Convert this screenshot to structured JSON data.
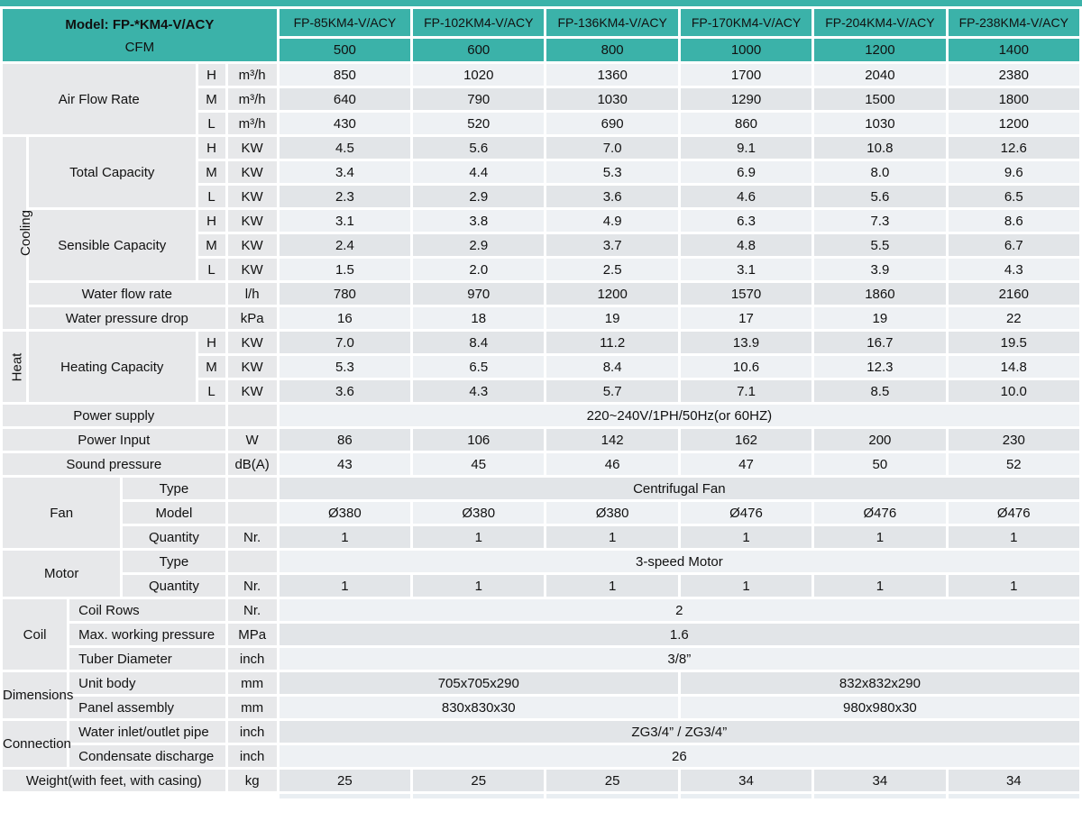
{
  "title": "FP-*KM4-V/ACY fan coil unit specification table",
  "colors": {
    "teal_header": "#3bb2a9",
    "row_light": "#eef1f4",
    "row_dark": "#e2e5e8",
    "label_gray": "#e7e8ea",
    "background": "#ffffff",
    "text": "#111111"
  },
  "header": {
    "model_label": "Model: FP-*KM4-V/ACY",
    "cfm_label": "CFM"
  },
  "table": {
    "rows": [
      {
        "cells": [
          {
            "k": "corner",
            "c": 6,
            "r": 2,
            "t": ""
          },
          {
            "k": "th-model",
            "t": "FP-85KM4-V/ACY"
          },
          {
            "k": "th-model",
            "t": "FP-102KM4-V/ACY"
          },
          {
            "k": "th-model",
            "t": "FP-136KM4-V/ACY"
          },
          {
            "k": "th-model",
            "t": "FP-170KM4-V/ACY"
          },
          {
            "k": "th-model",
            "t": "FP-204KM4-V/ACY"
          },
          {
            "k": "th-model",
            "t": "FP-238KM4-V/ACY"
          }
        ]
      },
      {
        "cells": [
          {
            "k": "th-cfm",
            "t": "500"
          },
          {
            "k": "th-cfm",
            "t": "600"
          },
          {
            "k": "th-cfm",
            "t": "800"
          },
          {
            "k": "th-cfm",
            "t": "1000"
          },
          {
            "k": "th-cfm",
            "t": "1200"
          },
          {
            "k": "th-cfm",
            "t": "1400"
          }
        ]
      },
      {
        "cells": [
          {
            "k": "label",
            "c": 4,
            "r": 3,
            "t": "Air Flow Rate"
          },
          {
            "k": "hml",
            "t": "H"
          },
          {
            "k": "unit",
            "t": "m³/h"
          },
          {
            "t": "850"
          },
          {
            "t": "1020"
          },
          {
            "t": "1360"
          },
          {
            "t": "1700"
          },
          {
            "t": "2040"
          },
          {
            "t": "2380"
          }
        ]
      },
      {
        "cells": [
          {
            "k": "hml",
            "t": "M"
          },
          {
            "k": "unit",
            "t": "m³/h"
          },
          {
            "t": "640"
          },
          {
            "t": "790"
          },
          {
            "t": "1030"
          },
          {
            "t": "1290"
          },
          {
            "t": "1500"
          },
          {
            "t": "1800"
          }
        ]
      },
      {
        "cells": [
          {
            "k": "hml",
            "t": "L"
          },
          {
            "k": "unit",
            "t": "m³/h"
          },
          {
            "t": "430"
          },
          {
            "t": "520"
          },
          {
            "t": "690"
          },
          {
            "t": "860"
          },
          {
            "t": "1030"
          },
          {
            "t": "1200"
          }
        ]
      },
      {
        "cells": [
          {
            "k": "vlabel",
            "r": 8,
            "t": "Cooling"
          },
          {
            "k": "label",
            "c": 3,
            "r": 3,
            "t": "Total Capacity"
          },
          {
            "k": "hml",
            "t": "H"
          },
          {
            "k": "unit",
            "t": "KW"
          },
          {
            "t": "4.5"
          },
          {
            "t": "5.6"
          },
          {
            "t": "7.0"
          },
          {
            "t": "9.1"
          },
          {
            "t": "10.8"
          },
          {
            "t": "12.6"
          }
        ]
      },
      {
        "cells": [
          {
            "k": "hml",
            "t": "M"
          },
          {
            "k": "unit",
            "t": "KW"
          },
          {
            "t": "3.4"
          },
          {
            "t": "4.4"
          },
          {
            "t": "5.3"
          },
          {
            "t": "6.9"
          },
          {
            "t": "8.0"
          },
          {
            "t": "9.6"
          }
        ]
      },
      {
        "cells": [
          {
            "k": "hml",
            "t": "L"
          },
          {
            "k": "unit",
            "t": "KW"
          },
          {
            "t": "2.3"
          },
          {
            "t": "2.9"
          },
          {
            "t": "3.6"
          },
          {
            "t": "4.6"
          },
          {
            "t": "5.6"
          },
          {
            "t": "6.5"
          }
        ]
      },
      {
        "cells": [
          {
            "k": "label",
            "c": 3,
            "r": 3,
            "t": "Sensible Capacity"
          },
          {
            "k": "hml",
            "t": "H"
          },
          {
            "k": "unit",
            "t": "KW"
          },
          {
            "t": "3.1"
          },
          {
            "t": "3.8"
          },
          {
            "t": "4.9"
          },
          {
            "t": "6.3"
          },
          {
            "t": "7.3"
          },
          {
            "t": "8.6"
          }
        ]
      },
      {
        "cells": [
          {
            "k": "hml",
            "t": "M"
          },
          {
            "k": "unit",
            "t": "KW"
          },
          {
            "t": "2.4"
          },
          {
            "t": "2.9"
          },
          {
            "t": "3.7"
          },
          {
            "t": "4.8"
          },
          {
            "t": "5.5"
          },
          {
            "t": "6.7"
          }
        ]
      },
      {
        "cells": [
          {
            "k": "hml",
            "t": "L"
          },
          {
            "k": "unit",
            "t": "KW"
          },
          {
            "t": "1.5"
          },
          {
            "t": "2.0"
          },
          {
            "t": "2.5"
          },
          {
            "t": "3.1"
          },
          {
            "t": "3.9"
          },
          {
            "t": "4.3"
          }
        ]
      },
      {
        "cells": [
          {
            "k": "label",
            "c": 4,
            "t": "Water flow rate"
          },
          {
            "k": "unit",
            "t": "l/h"
          },
          {
            "t": "780"
          },
          {
            "t": "970"
          },
          {
            "t": "1200"
          },
          {
            "t": "1570"
          },
          {
            "t": "1860"
          },
          {
            "t": "2160"
          }
        ]
      },
      {
        "cells": [
          {
            "k": "label",
            "c": 4,
            "t": "Water pressure drop"
          },
          {
            "k": "unit",
            "t": "kPa"
          },
          {
            "t": "16"
          },
          {
            "t": "18"
          },
          {
            "t": "19"
          },
          {
            "t": "17"
          },
          {
            "t": "19"
          },
          {
            "t": "22"
          }
        ]
      },
      {
        "cells": [
          {
            "k": "vlabel",
            "r": 3,
            "t": "Heat"
          },
          {
            "k": "label",
            "c": 3,
            "r": 3,
            "t": "Heating Capacity"
          },
          {
            "k": "hml",
            "t": "H"
          },
          {
            "k": "unit",
            "t": "KW"
          },
          {
            "t": "7.0"
          },
          {
            "t": "8.4"
          },
          {
            "t": "11.2"
          },
          {
            "t": "13.9"
          },
          {
            "t": "16.7"
          },
          {
            "t": "19.5"
          }
        ]
      },
      {
        "cells": [
          {
            "k": "hml",
            "t": "M"
          },
          {
            "k": "unit",
            "t": "KW"
          },
          {
            "t": "5.3"
          },
          {
            "t": "6.5"
          },
          {
            "t": "8.4"
          },
          {
            "t": "10.6"
          },
          {
            "t": "12.3"
          },
          {
            "t": "14.8"
          }
        ]
      },
      {
        "cells": [
          {
            "k": "hml",
            "t": "L"
          },
          {
            "k": "unit",
            "t": "KW"
          },
          {
            "t": "3.6"
          },
          {
            "t": "4.3"
          },
          {
            "t": "5.7"
          },
          {
            "t": "7.1"
          },
          {
            "t": "8.5"
          },
          {
            "t": "10.0"
          }
        ]
      },
      {
        "cells": [
          {
            "k": "label",
            "c": 5,
            "t": "Power supply"
          },
          {
            "k": "unit",
            "t": ""
          },
          {
            "k": "span",
            "c": 6,
            "t": "220~240V/1PH/50Hz(or 60HZ)"
          }
        ]
      },
      {
        "cells": [
          {
            "k": "label",
            "c": 5,
            "t": "Power Input"
          },
          {
            "k": "unit",
            "t": "W"
          },
          {
            "t": "86"
          },
          {
            "t": "106"
          },
          {
            "t": "142"
          },
          {
            "t": "162"
          },
          {
            "t": "200"
          },
          {
            "t": "230"
          }
        ]
      },
      {
        "cells": [
          {
            "k": "label",
            "c": 5,
            "t": "Sound pressure"
          },
          {
            "k": "unit",
            "t": "dB(A)"
          },
          {
            "t": "43"
          },
          {
            "t": "45"
          },
          {
            "t": "46"
          },
          {
            "t": "47"
          },
          {
            "t": "50"
          },
          {
            "t": "52"
          }
        ]
      },
      {
        "cells": [
          {
            "k": "glabel",
            "c": 3,
            "r": 3,
            "t": "Fan"
          },
          {
            "k": "label",
            "c": 2,
            "t": "Type"
          },
          {
            "k": "unit",
            "t": ""
          },
          {
            "k": "span",
            "c": 6,
            "t": "Centrifugal Fan"
          }
        ]
      },
      {
        "cells": [
          {
            "k": "label",
            "c": 2,
            "t": "Model"
          },
          {
            "k": "unit",
            "t": ""
          },
          {
            "t": "Ø380"
          },
          {
            "t": "Ø380"
          },
          {
            "t": "Ø380"
          },
          {
            "t": "Ø476"
          },
          {
            "t": "Ø476"
          },
          {
            "t": "Ø476"
          }
        ]
      },
      {
        "cells": [
          {
            "k": "label",
            "c": 2,
            "t": "Quantity"
          },
          {
            "k": "unit",
            "t": "Nr."
          },
          {
            "t": "1"
          },
          {
            "t": "1"
          },
          {
            "t": "1"
          },
          {
            "t": "1"
          },
          {
            "t": "1"
          },
          {
            "t": "1"
          }
        ]
      },
      {
        "cells": [
          {
            "k": "glabel",
            "c": 3,
            "r": 2,
            "t": "Motor"
          },
          {
            "k": "label",
            "c": 2,
            "t": "Type"
          },
          {
            "k": "unit",
            "t": ""
          },
          {
            "k": "span",
            "c": 6,
            "t": "3-speed Motor"
          }
        ]
      },
      {
        "cells": [
          {
            "k": "label",
            "c": 2,
            "t": "Quantity"
          },
          {
            "k": "unit",
            "t": "Nr."
          },
          {
            "t": "1"
          },
          {
            "t": "1"
          },
          {
            "t": "1"
          },
          {
            "t": "1"
          },
          {
            "t": "1"
          },
          {
            "t": "1"
          }
        ]
      },
      {
        "cells": [
          {
            "k": "glabel",
            "c": 2,
            "r": 3,
            "t": "Coil"
          },
          {
            "k": "label-left",
            "c": 3,
            "t": "Coil Rows"
          },
          {
            "k": "unit",
            "t": "Nr."
          },
          {
            "k": "span",
            "c": 6,
            "t": "2"
          }
        ]
      },
      {
        "cells": [
          {
            "k": "label-left",
            "c": 3,
            "t": "Max. working pressure"
          },
          {
            "k": "unit",
            "t": "MPa"
          },
          {
            "k": "span",
            "c": 6,
            "t": "1.6"
          }
        ]
      },
      {
        "cells": [
          {
            "k": "label-left",
            "c": 3,
            "t": "Tuber Diameter"
          },
          {
            "k": "unit",
            "t": "inch"
          },
          {
            "k": "span",
            "c": 6,
            "t": "3/8”"
          }
        ]
      },
      {
        "cells": [
          {
            "k": "glabel",
            "c": 2,
            "r": 2,
            "t": "Dimensions"
          },
          {
            "k": "label-left",
            "c": 3,
            "t": "Unit body"
          },
          {
            "k": "unit",
            "t": "mm"
          },
          {
            "k": "span",
            "c": 3,
            "t": "705x705x290"
          },
          {
            "k": "span",
            "c": 3,
            "t": "832x832x290"
          }
        ]
      },
      {
        "cells": [
          {
            "k": "label-left",
            "c": 3,
            "t": "Panel assembly"
          },
          {
            "k": "unit",
            "t": "mm"
          },
          {
            "k": "span",
            "c": 3,
            "t": "830x830x30"
          },
          {
            "k": "span",
            "c": 3,
            "t": "980x980x30"
          }
        ]
      },
      {
        "cells": [
          {
            "k": "glabel",
            "c": 2,
            "r": 2,
            "t": "Connection"
          },
          {
            "k": "label-left",
            "c": 3,
            "t": "Water inlet/outlet pipe"
          },
          {
            "k": "unit",
            "t": "inch"
          },
          {
            "k": "span",
            "c": 6,
            "t": "ZG3/4” / ZG3/4”"
          }
        ]
      },
      {
        "cells": [
          {
            "k": "label-left",
            "c": 3,
            "t": "Condensate discharge"
          },
          {
            "k": "unit",
            "t": "inch"
          },
          {
            "k": "span",
            "c": 6,
            "t": "26"
          }
        ]
      },
      {
        "cells": [
          {
            "k": "label",
            "c": 5,
            "t": "Weight(with feet, with casing)"
          },
          {
            "k": "unit",
            "t": "kg"
          },
          {
            "t": "25"
          },
          {
            "t": "25"
          },
          {
            "t": "25"
          },
          {
            "t": "34"
          },
          {
            "t": "34"
          },
          {
            "t": "34"
          }
        ]
      },
      {
        "cells": [
          {
            "k": "spacer",
            "c": 6,
            "t": ""
          },
          {
            "k": "sliver",
            "t": ""
          },
          {
            "k": "sliver",
            "t": ""
          },
          {
            "k": "sliver",
            "t": ""
          },
          {
            "k": "sliver",
            "t": ""
          },
          {
            "k": "sliver",
            "t": ""
          },
          {
            "k": "sliver",
            "t": ""
          }
        ]
      }
    ]
  }
}
